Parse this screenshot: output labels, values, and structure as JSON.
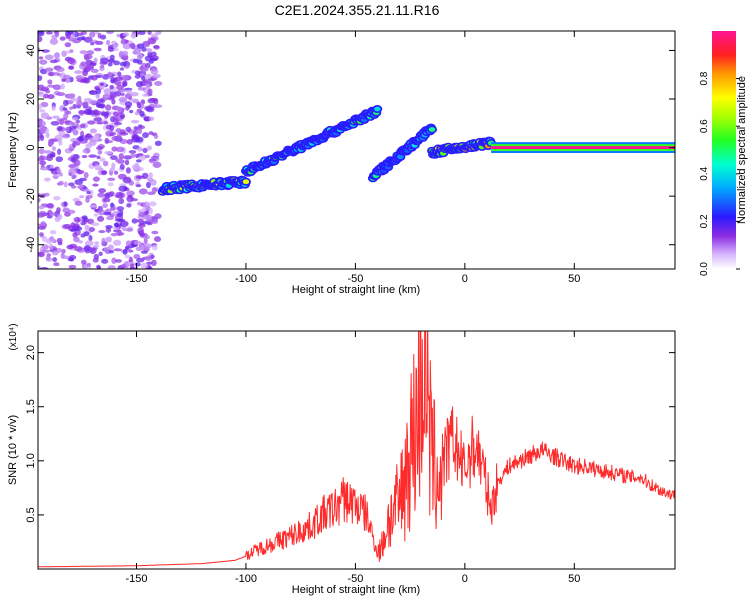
{
  "title": "C2E1.2024.355.21.11.R16",
  "colors": {
    "snr_line": "#ff2a2a",
    "axis": "#000000"
  },
  "chart_data": [
    {
      "type": "heatmap",
      "title": "C2E1.2024.355.21.11.R16",
      "xlabel": "Height of straight line (km)",
      "ylabel": "Frequency (Hz)",
      "xlim": [
        -195,
        96
      ],
      "ylim": [
        -50,
        48
      ],
      "xticks": [
        -150,
        -100,
        -50,
        0,
        50
      ],
      "yticks": [
        -40,
        -20,
        0,
        20,
        40
      ],
      "colorbar": {
        "label": "Normalized spectral amplitude",
        "range": [
          0,
          1
        ],
        "ticks": [
          "0.0",
          "0.2",
          "0.4",
          "0.6",
          "0.8"
        ],
        "colormap": "rainbow",
        "position": "right"
      },
      "features": [
        {
          "x_range": [
            -195,
            -140
          ],
          "y_range": [
            -50,
            48
          ],
          "amplitude": 0.1
        },
        {
          "x_range": [
            -138,
            -100
          ],
          "y_range": [
            -17,
            -14
          ],
          "amplitude": 0.5
        },
        {
          "x_range": [
            -100,
            -40
          ],
          "y_range": [
            -10,
            15
          ],
          "amplitude": 0.4
        },
        {
          "x_range": [
            -42,
            -15
          ],
          "y_range": [
            -12,
            8
          ],
          "amplitude": 0.35
        },
        {
          "x_range": [
            -15,
            12
          ],
          "y_range": [
            -2,
            2
          ],
          "amplitude": 0.6
        },
        {
          "x_range": [
            12,
            96
          ],
          "y_range": [
            -1,
            1
          ],
          "amplitude": 1.0
        }
      ]
    },
    {
      "type": "line",
      "xlabel": "Height of straight line (km)",
      "ylabel": "SNR (10 * v/v)",
      "y_multiplier": "(x10⁴)",
      "xlim": [
        -195,
        96
      ],
      "ylim": [
        0,
        2.2
      ],
      "xticks": [
        -150,
        -100,
        -50,
        0,
        50
      ],
      "yticks": [
        "0.5",
        "1.0",
        "1.5",
        "2.0"
      ],
      "series": [
        {
          "x": [
            -195,
            -150,
            -120,
            -105,
            -100,
            -95,
            -90,
            -80,
            -75,
            -70,
            -65,
            -60,
            -55,
            -50,
            -45,
            -42,
            -40,
            -38,
            -35,
            -30,
            -28,
            -25,
            -22,
            -20,
            -18,
            -17,
            -15,
            -12,
            -10,
            -8,
            -5,
            -2,
            0,
            2,
            5,
            8,
            10,
            12,
            15,
            20,
            25,
            30,
            35,
            40,
            45,
            50,
            55,
            60,
            65,
            70,
            75,
            80,
            85,
            90,
            96
          ],
          "y": [
            0.02,
            0.03,
            0.05,
            0.08,
            0.12,
            0.18,
            0.22,
            0.3,
            0.35,
            0.4,
            0.5,
            0.55,
            0.65,
            0.6,
            0.5,
            0.3,
            0.15,
            0.2,
            0.45,
            0.6,
            0.8,
            1.1,
            1.4,
            1.7,
            2.2,
            1.5,
            1.0,
            0.85,
            0.95,
            1.1,
            1.2,
            1.0,
            0.9,
            1.05,
            1.15,
            0.95,
            0.75,
            0.55,
            0.8,
            0.95,
            1.0,
            1.05,
            1.1,
            1.05,
            1.0,
            0.95,
            0.95,
            0.92,
            0.9,
            0.88,
            0.85,
            0.85,
            0.78,
            0.72,
            0.68
          ]
        }
      ]
    }
  ]
}
